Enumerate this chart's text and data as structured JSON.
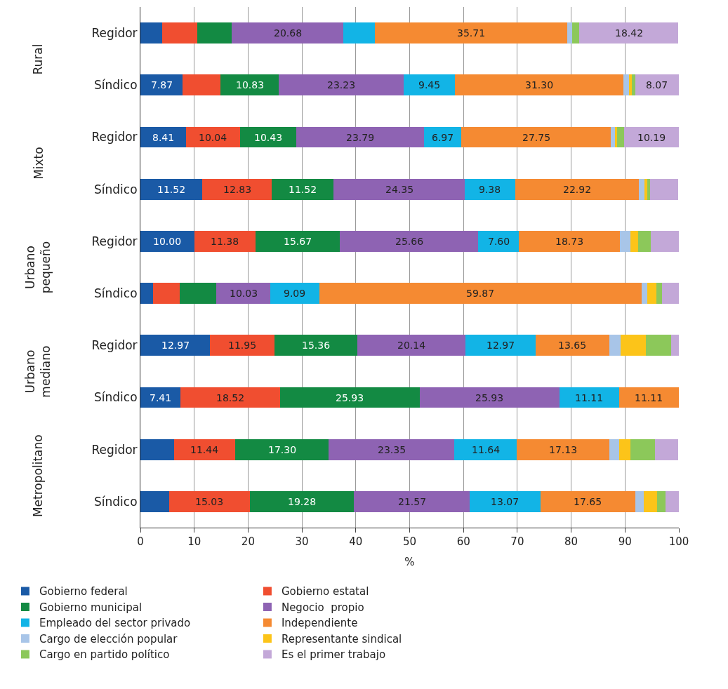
{
  "chart_data": {
    "type": "bar",
    "orientation": "horizontal",
    "stacked": true,
    "categories": [
      "Regidor",
      "Síndico",
      "Regidor",
      "Síndico",
      "Regidor",
      "Síndico",
      "Regidor",
      "Síndico",
      "Regidor",
      "Síndico"
    ],
    "annotations": [
      "Rural",
      "Mixto",
      "Urbano pequeño",
      "Urbano mediano",
      "Metropolitano"
    ],
    "xlabel": "%",
    "xlim": [
      0,
      100
    ],
    "xticks": [
      0,
      10,
      20,
      30,
      40,
      50,
      60,
      70,
      80,
      90,
      100
    ],
    "grid": "x",
    "legend": "bottom",
    "series": [
      {
        "name": "Gobierno federal",
        "color": "#1a5aa6",
        "values": [
          4.0,
          7.87,
          8.41,
          11.52,
          10.0,
          2.4,
          12.97,
          7.41,
          6.2,
          5.3
        ],
        "value_labels": [
          null,
          "7.87",
          "8.41",
          "11.52",
          "10.00",
          null,
          "12.97",
          "7.41",
          null,
          null
        ]
      },
      {
        "name": "Gobierno estatal",
        "color": "#f04e30",
        "values": [
          6.5,
          7.0,
          10.04,
          12.83,
          11.38,
          4.9,
          11.95,
          18.52,
          11.44,
          15.03
        ],
        "value_labels": [
          null,
          null,
          "10.04",
          "12.83",
          "11.38",
          null,
          "11.95",
          "18.52",
          "11.44",
          "15.03"
        ]
      },
      {
        "name": "Gobierno municipal",
        "color": "#138a43",
        "values": [
          6.5,
          10.83,
          10.43,
          11.52,
          15.67,
          6.8,
          15.36,
          25.93,
          17.3,
          19.28
        ],
        "value_labels": [
          null,
          "10.83",
          "10.43",
          "11.52",
          "15.67",
          null,
          "15.36",
          "25.93",
          "17.30",
          "19.28"
        ]
      },
      {
        "name": "Negocio  propio",
        "color": "#8e63b3",
        "values": [
          20.68,
          23.23,
          23.79,
          24.35,
          25.66,
          10.03,
          20.14,
          25.93,
          23.35,
          21.57
        ],
        "value_labels": [
          "20.68",
          "23.23",
          "23.79",
          "24.35",
          "25.66",
          "10.03",
          "20.14",
          "25.93",
          "23.35",
          "21.57"
        ]
      },
      {
        "name": "Empleado del sector privado",
        "color": "#12b4e6",
        "values": [
          5.9,
          9.45,
          6.97,
          9.38,
          7.6,
          9.09,
          12.97,
          11.11,
          11.64,
          13.07
        ],
        "value_labels": [
          null,
          "9.45",
          "6.97",
          "9.38",
          "7.60",
          "9.09",
          "12.97",
          "11.11",
          "11.64",
          "13.07"
        ]
      },
      {
        "name": "Independiente",
        "color": "#f58a32",
        "values": [
          35.71,
          31.3,
          27.75,
          22.92,
          18.73,
          59.87,
          13.65,
          11.11,
          17.13,
          17.65
        ],
        "value_labels": [
          "35.71",
          "31.30",
          "27.75",
          "22.92",
          "18.73",
          "59.87",
          "13.65",
          "11.11",
          "17.13",
          "17.65"
        ]
      },
      {
        "name": "Cargo de elección popular",
        "color": "#a8c5e8",
        "values": [
          0.9,
          1.0,
          0.8,
          1.1,
          1.9,
          1.1,
          2.1,
          0,
          1.8,
          1.6
        ]
      },
      {
        "name": "Representante sindical",
        "color": "#fcc419",
        "values": [
          0,
          0.6,
          0.3,
          0.5,
          1.5,
          1.6,
          4.7,
          0,
          2.1,
          2.4
        ]
      },
      {
        "name": "Cargo en partido político",
        "color": "#8cc85a",
        "values": [
          1.3,
          0.6,
          1.3,
          0.5,
          2.3,
          1.1,
          4.7,
          0,
          4.6,
          1.6
        ]
      },
      {
        "name": "Es el primer trabajo",
        "color": "#c3a8d8",
        "values": [
          18.42,
          8.07,
          10.19,
          5.3,
          5.2,
          3.1,
          1.4,
          0,
          4.3,
          2.5
        ],
        "value_labels": [
          "18.42",
          "8.07",
          "10.19",
          null,
          null,
          null,
          null,
          null,
          null,
          null
        ]
      }
    ]
  }
}
